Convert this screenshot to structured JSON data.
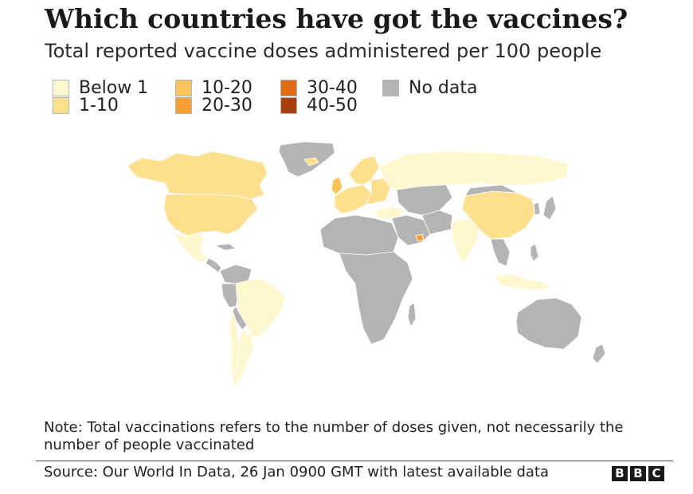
{
  "title": "Which countries have got the vaccines?",
  "subtitle": "Total reported vaccine doses administered per 100 people",
  "legend": [
    {
      "label": "Below 1",
      "color": "#fff8cf"
    },
    {
      "label": "1-10",
      "color": "#fde08e"
    },
    {
      "label": "10-20",
      "color": "#f9c359"
    },
    {
      "label": "20-30",
      "color": "#f7a031"
    },
    {
      "label": "30-40",
      "color": "#de6b14"
    },
    {
      "label": "40-50",
      "color": "#a8400c"
    },
    {
      "label": "No data",
      "color": "#b4b4b4"
    }
  ],
  "note": "Note: Total vaccinations refers to the number of doses given, not necessarily the number of people vaccinated",
  "source": "Source: Our World In Data, 26 Jan 0900 GMT with latest available data",
  "logo": {
    "letters": [
      "B",
      "B",
      "C"
    ],
    "color": "#1a1a1a"
  },
  "map_colors": {
    "below_1": "#fff8cf",
    "1_10": "#fde08e",
    "10_20": "#f9c359",
    "20_30": "#f7a031",
    "30_40": "#de6b14",
    "40_50": "#a8400c",
    "no_data": "#b4b4b4"
  }
}
